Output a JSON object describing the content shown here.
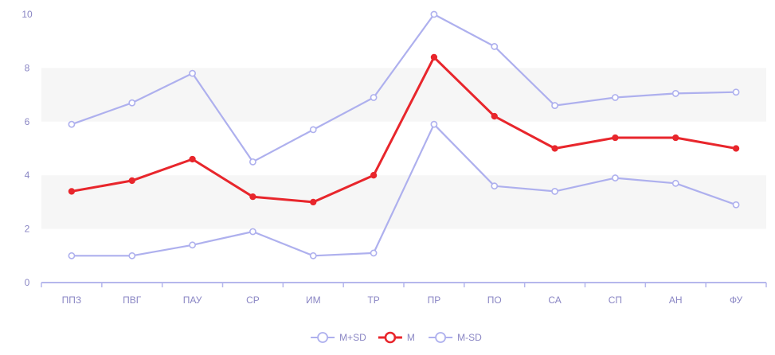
{
  "chart_data": {
    "type": "line",
    "categories": [
      "ППЗ",
      "ПВГ",
      "ПАУ",
      "СР",
      "ИМ",
      "ТР",
      "ПР",
      "ПО",
      "СА",
      "СП",
      "АН",
      "ФУ"
    ],
    "series": [
      {
        "name": "M+SD",
        "values": [
          5.9,
          6.7,
          7.8,
          4.5,
          5.7,
          6.9,
          10.0,
          8.8,
          6.6,
          6.9,
          7.05,
          7.1
        ],
        "color": "#aeb0ee",
        "emphasis": false
      },
      {
        "name": "M",
        "values": [
          3.4,
          3.8,
          4.6,
          3.2,
          3.0,
          4.0,
          8.4,
          6.2,
          5.0,
          5.4,
          5.4,
          5.0
        ],
        "color": "#e8262c",
        "emphasis": true
      },
      {
        "name": "M-SD",
        "values": [
          1.0,
          1.0,
          1.4,
          1.9,
          1.0,
          1.1,
          5.9,
          3.6,
          3.4,
          3.9,
          3.7,
          2.9
        ],
        "color": "#aeb0ee",
        "emphasis": false
      }
    ],
    "y_ticks": [
      "0",
      "2",
      "4",
      "6",
      "8",
      "10"
    ],
    "ylim": [
      0,
      10
    ],
    "title": "",
    "xlabel": "",
    "ylabel": "",
    "grid": "alternating horizontal bands",
    "legend_position": "bottom-center",
    "colors": {
      "band": "#f6f6f6",
      "axis": "#b5b7ec",
      "tick_label": "#8a86c4",
      "legend_text": "#8a86c4"
    }
  }
}
